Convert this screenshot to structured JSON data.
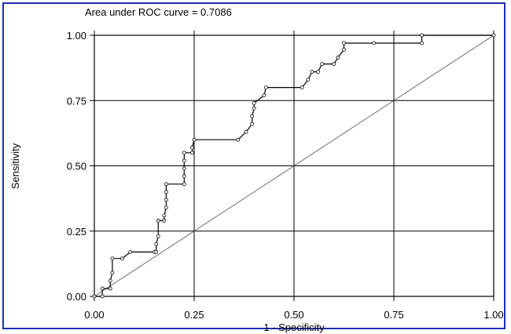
{
  "chart_data": {
    "type": "line",
    "title": "Area under ROC curve = 0.7086",
    "xlabel": "1 - Specificity",
    "ylabel": "Sensitivity",
    "xlim": [
      0,
      1
    ],
    "ylim": [
      0,
      1
    ],
    "x_ticks": [
      "0.00",
      "0.25",
      "0.50",
      "0.75",
      "1.00"
    ],
    "y_ticks": [
      "0.00",
      "0.25",
      "0.50",
      "0.75",
      "1.00"
    ],
    "grid": true,
    "series": [
      {
        "values_xy": [
          [
            0.0,
            0.0
          ],
          [
            0.02,
            0.0
          ],
          [
            0.02,
            0.03
          ],
          [
            0.04,
            0.03
          ],
          [
            0.04,
            0.06
          ],
          [
            0.045,
            0.09
          ],
          [
            0.045,
            0.145
          ],
          [
            0.07,
            0.145
          ],
          [
            0.09,
            0.17
          ],
          [
            0.15,
            0.17
          ],
          [
            0.155,
            0.17
          ],
          [
            0.155,
            0.2
          ],
          [
            0.16,
            0.23
          ],
          [
            0.16,
            0.29
          ],
          [
            0.175,
            0.29
          ],
          [
            0.175,
            0.31
          ],
          [
            0.18,
            0.34
          ],
          [
            0.18,
            0.37
          ],
          [
            0.18,
            0.4
          ],
          [
            0.18,
            0.43
          ],
          [
            0.225,
            0.43
          ],
          [
            0.225,
            0.46
          ],
          [
            0.225,
            0.49
          ],
          [
            0.225,
            0.52
          ],
          [
            0.225,
            0.55
          ],
          [
            0.245,
            0.55
          ],
          [
            0.245,
            0.57
          ],
          [
            0.25,
            0.6
          ],
          [
            0.36,
            0.6
          ],
          [
            0.38,
            0.63
          ],
          [
            0.395,
            0.66
          ],
          [
            0.395,
            0.69
          ],
          [
            0.4,
            0.72
          ],
          [
            0.4,
            0.74
          ],
          [
            0.425,
            0.77
          ],
          [
            0.43,
            0.8
          ],
          [
            0.52,
            0.8
          ],
          [
            0.535,
            0.83
          ],
          [
            0.545,
            0.86
          ],
          [
            0.56,
            0.86
          ],
          [
            0.57,
            0.89
          ],
          [
            0.6,
            0.89
          ],
          [
            0.61,
            0.915
          ],
          [
            0.625,
            0.945
          ],
          [
            0.625,
            0.97
          ],
          [
            0.7,
            0.97
          ],
          [
            0.82,
            0.97
          ],
          [
            0.82,
            1.0
          ],
          [
            1.0,
            1.0
          ]
        ]
      }
    ],
    "reference_line": [
      [
        0,
        0
      ],
      [
        1,
        1
      ]
    ]
  }
}
